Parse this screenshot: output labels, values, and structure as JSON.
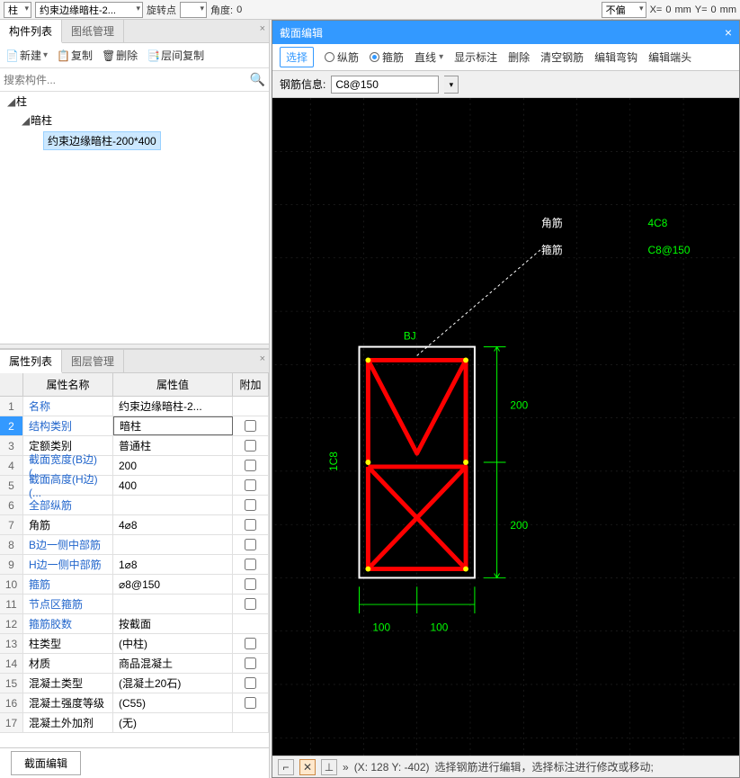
{
  "topbar": {
    "dd1": "柱",
    "dd2": "约束边缘暗柱-2...",
    "rotLabel": "旋转点",
    "angLabel": "角度:",
    "angVal": "0",
    "offLabel": "不偏移",
    "xLabel": "X=",
    "xVal": "0",
    "xUnit": "mm",
    "yLabel": "Y=",
    "yVal": "0",
    "yUnit": "mm"
  },
  "leftTabs": {
    "t1": "构件列表",
    "t2": "图纸管理"
  },
  "leftToolbar": {
    "new": "新建",
    "copy": "复制",
    "del": "删除",
    "layerCopy": "层间复制"
  },
  "search": {
    "placeholder": "搜索构件..."
  },
  "tree": {
    "root": "柱",
    "sub": "暗柱",
    "leaf": "约束边缘暗柱-200*400"
  },
  "propTabs": {
    "t1": "属性列表",
    "t2": "图层管理"
  },
  "propHead": {
    "name": "属性名称",
    "val": "属性值",
    "add": "附加"
  },
  "props": [
    {
      "n": "1",
      "name": "名称",
      "val": "约束边缘暗柱-2...",
      "link": true,
      "add": false,
      "chk": false
    },
    {
      "n": "2",
      "name": "结构类别",
      "val": "暗柱",
      "link": true,
      "add": true,
      "chk": false,
      "sel": true
    },
    {
      "n": "3",
      "name": "定额类别",
      "val": "普通柱",
      "link": false,
      "add": true,
      "chk": false
    },
    {
      "n": "4",
      "name": "截面宽度(B边)(...",
      "val": "200",
      "link": true,
      "add": true,
      "chk": false
    },
    {
      "n": "5",
      "name": "截面高度(H边)(...",
      "val": "400",
      "link": true,
      "add": true,
      "chk": false
    },
    {
      "n": "6",
      "name": "全部纵筋",
      "val": "",
      "link": true,
      "add": true,
      "chk": false
    },
    {
      "n": "7",
      "name": "角筋",
      "val": "4⌀8",
      "link": false,
      "add": true,
      "chk": false
    },
    {
      "n": "8",
      "name": "B边一侧中部筋",
      "val": "",
      "link": true,
      "add": true,
      "chk": false
    },
    {
      "n": "9",
      "name": "H边一侧中部筋",
      "val": "1⌀8",
      "link": true,
      "add": true,
      "chk": false
    },
    {
      "n": "10",
      "name": "箍筋",
      "val": "⌀8@150",
      "link": true,
      "add": true,
      "chk": false
    },
    {
      "n": "11",
      "name": "节点区箍筋",
      "val": "",
      "link": true,
      "add": true,
      "chk": false
    },
    {
      "n": "12",
      "name": "箍筋胶数",
      "val": "按截面",
      "link": true,
      "add": false,
      "chk": false
    },
    {
      "n": "13",
      "name": "柱类型",
      "val": "(中柱)",
      "link": false,
      "add": true,
      "chk": false
    },
    {
      "n": "14",
      "name": "材质",
      "val": "商品混凝土",
      "link": false,
      "add": true,
      "chk": false
    },
    {
      "n": "15",
      "name": "混凝土类型",
      "val": "(混凝土20石)",
      "link": false,
      "add": true,
      "chk": false
    },
    {
      "n": "16",
      "name": "混凝土强度等级",
      "val": "(C55)",
      "link": false,
      "add": true,
      "chk": false
    },
    {
      "n": "17",
      "name": "混凝土外加剂",
      "val": "(无)",
      "link": false,
      "add": false,
      "chk": false
    }
  ],
  "bottomBtn": "截面编辑",
  "dialog": {
    "title": "截面编辑",
    "toolbar": {
      "sel": "选择",
      "long": "纵筋",
      "stir": "箍筋",
      "line": "直线",
      "show": "显示标注",
      "del": "删除",
      "clear": "清空钢筋",
      "hook": "编辑弯钩",
      "end": "编辑端头"
    },
    "info": {
      "label": "钢筋信息:",
      "val": "C8@150"
    },
    "legend": {
      "l1": "角筋",
      "r1": "4C8",
      "l2": "箍筋",
      "r2": "C8@150"
    },
    "labels": {
      "bj": "BJ",
      "side": "1C8",
      "d200a": "200",
      "d200b": "200",
      "d100a": "100",
      "d100b": "100"
    },
    "colors": {
      "rect_stroke": "#ffffff",
      "rebar": "#ff0000",
      "corner": "#ffff00",
      "dim": "#00ff00",
      "grid": "#333333",
      "bg": "#000000"
    },
    "status": {
      "coords": "(X: 128 Y: -402)",
      "msg": "选择钢筋进行编辑，选择标注进行修改或移动;"
    }
  }
}
